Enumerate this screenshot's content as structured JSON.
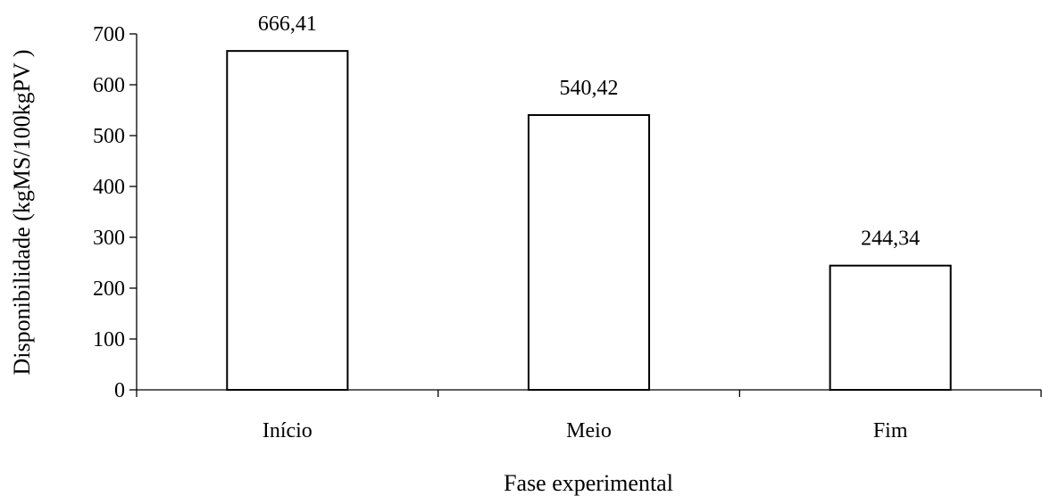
{
  "chart_data": {
    "type": "bar",
    "title": "",
    "xlabel": "Fase experimental",
    "ylabel": "Disponibilidade (kgMS/100kgPV )",
    "categories": [
      "Início",
      "Meio",
      "Fim"
    ],
    "values": [
      666.41,
      540.42,
      244.34
    ],
    "data_labels": [
      "666,41",
      "540,42",
      "244,34"
    ],
    "ylim": [
      0,
      700
    ],
    "yticks": [
      0,
      100,
      200,
      300,
      400,
      500,
      600,
      700
    ],
    "ytick_labels": [
      "0",
      "100",
      "200",
      "300",
      "400",
      "500",
      "600",
      "700"
    ],
    "grid": false,
    "legend": "none",
    "colors": {
      "bar_fill": "#ffffff",
      "bar_stroke": "#000000"
    }
  }
}
